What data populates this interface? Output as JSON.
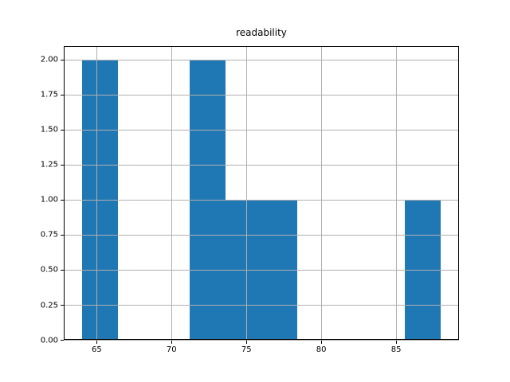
{
  "chart_data": {
    "type": "bar",
    "variant": "histogram",
    "title": "readability",
    "xlabel": "",
    "ylabel": "",
    "bin_edges": [
      64.0,
      66.4,
      68.8,
      71.2,
      73.6,
      76.0,
      78.4,
      80.8,
      83.2,
      85.6,
      88.0
    ],
    "counts": [
      2,
      0,
      0,
      2,
      1,
      1,
      0,
      0,
      0,
      1
    ],
    "xlim": [
      62.8,
      89.2
    ],
    "ylim": [
      0.0,
      2.1
    ],
    "xticks": [
      {
        "value": 65,
        "label": "65"
      },
      {
        "value": 70,
        "label": "70"
      },
      {
        "value": 75,
        "label": "75"
      },
      {
        "value": 80,
        "label": "80"
      },
      {
        "value": 85,
        "label": "85"
      }
    ],
    "yticks": [
      {
        "value": 0.0,
        "label": "0.00"
      },
      {
        "value": 0.25,
        "label": "0.25"
      },
      {
        "value": 0.5,
        "label": "0.50"
      },
      {
        "value": 0.75,
        "label": "0.75"
      },
      {
        "value": 1.0,
        "label": "1.00"
      },
      {
        "value": 1.25,
        "label": "1.25"
      },
      {
        "value": 1.5,
        "label": "1.50"
      },
      {
        "value": 1.75,
        "label": "1.75"
      },
      {
        "value": 2.0,
        "label": "2.00"
      }
    ],
    "grid": true,
    "grid_above_bars": true,
    "legend_position": "none",
    "colors": {
      "bar": "#1f77b4",
      "grid": "#b0b0b0",
      "spine": "#000000",
      "text": "#000000",
      "background": "#ffffff"
    }
  }
}
